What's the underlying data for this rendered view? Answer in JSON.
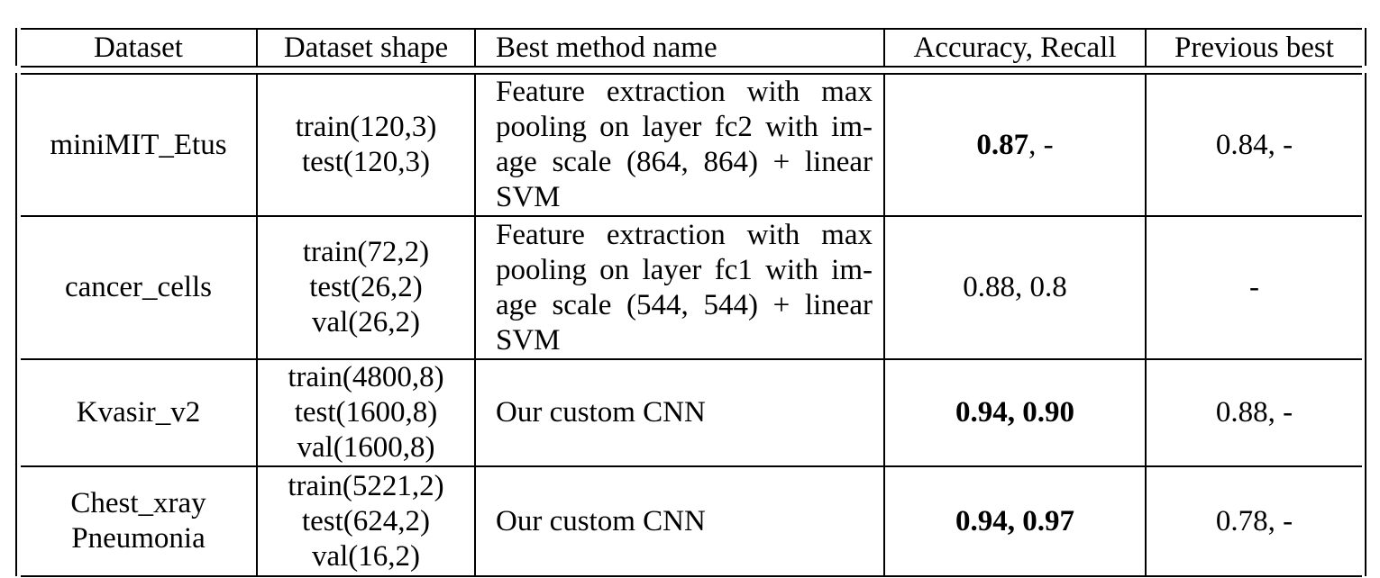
{
  "table": {
    "headers": [
      "Dataset",
      "Dataset shape",
      "Best method name",
      "Accuracy, Recall",
      "Previous best"
    ],
    "rows": [
      {
        "dataset": [
          "miniMIT_Etus"
        ],
        "shape": [
          "train(120,3)",
          "test(120,3)"
        ],
        "method": "Feature extraction with max pooling on layer fc2 with im­age scale (864, 864) + linear SVM",
        "accuracy_bold": "0.87",
        "accuracy_plain": ", -",
        "previous": "0.84, -"
      },
      {
        "dataset": [
          "cancer_cells"
        ],
        "shape": [
          "train(72,2)",
          "test(26,2)",
          "val(26,2)"
        ],
        "method": "Feature extraction with max pooling on layer fc1 with im­age scale (544, 544) + linear SVM",
        "accuracy_bold": "",
        "accuracy_plain": "0.88, 0.8",
        "previous": "-"
      },
      {
        "dataset": [
          "Kvasir_v2"
        ],
        "shape": [
          "train(4800,8)",
          "test(1600,8)",
          "val(1600,8)"
        ],
        "method": "Our custom CNN",
        "accuracy_bold": "0.94, 0.90",
        "accuracy_plain": "",
        "previous": "0.88, -"
      },
      {
        "dataset": [
          "Chest_xray",
          "Pneumonia"
        ],
        "shape": [
          "train(5221,2)",
          "test(624,2)",
          "val(16,2)"
        ],
        "method": "Our custom CNN",
        "accuracy_bold": "0.94, 0.97",
        "accuracy_plain": "",
        "previous": "0.78, -"
      }
    ]
  }
}
